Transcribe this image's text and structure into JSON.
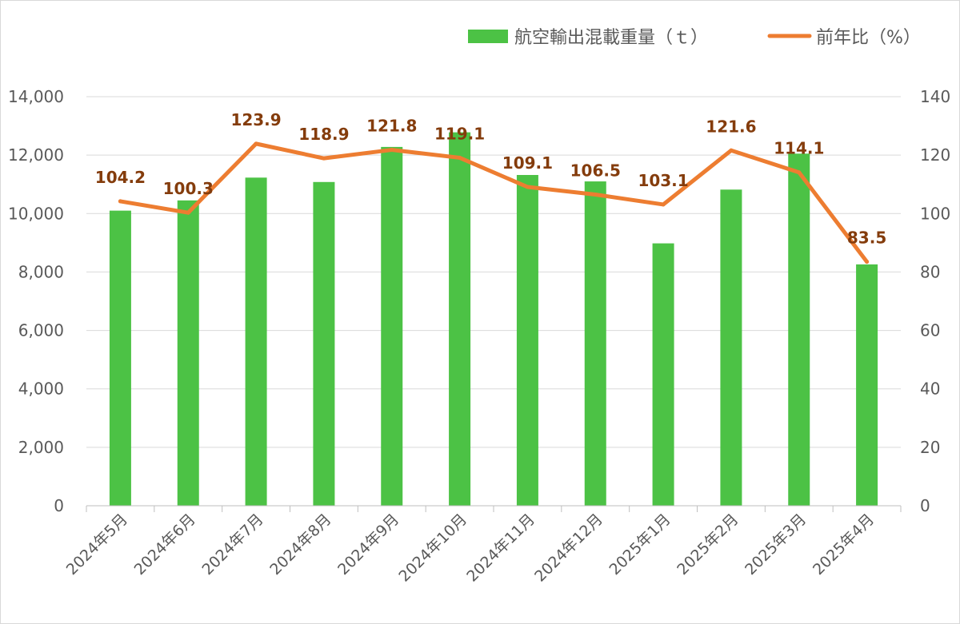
{
  "chart_data": {
    "type": "bar",
    "categories": [
      "2024年5月",
      "2024年6月",
      "2024年7月",
      "2024年8月",
      "2024年9月",
      "2024年10月",
      "2024年11月",
      "2024年12月",
      "2025年1月",
      "2025年2月",
      "2025年3月",
      "2025年4月"
    ],
    "series": [
      {
        "name": "航空輸出混載重量（ｔ）",
        "type": "bar",
        "axis": "left",
        "color": "#4CC245",
        "values": [
          10100,
          10450,
          11230,
          11080,
          12280,
          12780,
          11320,
          11100,
          8980,
          10820,
          12050,
          8260
        ]
      },
      {
        "name": "前年比（%）",
        "type": "line",
        "axis": "right",
        "color": "#ED7D31",
        "values": [
          104.2,
          100.3,
          123.9,
          118.9,
          121.8,
          119.1,
          109.1,
          106.5,
          103.1,
          121.6,
          114.1,
          83.5
        ],
        "labels": [
          "104.2",
          "100.3",
          "123.9",
          "118.9",
          "121.8",
          "119.1",
          "109.1",
          "106.5",
          "103.1",
          "121.6",
          "114.1",
          "83.5"
        ]
      }
    ],
    "ylim": [
      0,
      14000
    ],
    "y_ticks": [
      "0",
      "2,000",
      "4,000",
      "6,000",
      "8,000",
      "10,000",
      "12,000",
      "14,000"
    ],
    "y2lim": [
      0,
      140
    ],
    "y2_ticks": [
      "0",
      "20",
      "40",
      "60",
      "80",
      "100",
      "120",
      "140"
    ],
    "grid": true,
    "legend_position": "top-right"
  }
}
